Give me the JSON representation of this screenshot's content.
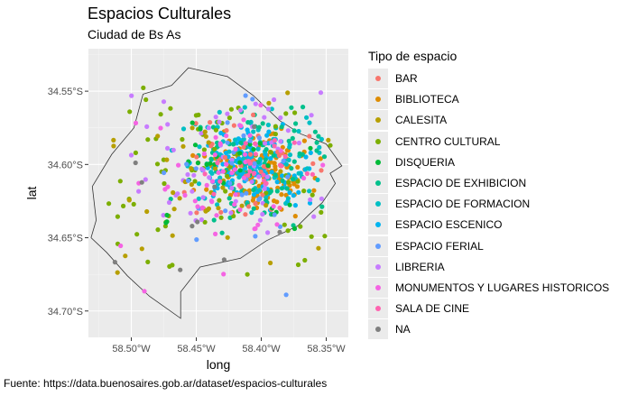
{
  "chart_data": {
    "type": "scatter",
    "title": "Espacios Culturales",
    "subtitle": "Ciudad de Bs As",
    "caption": "Fuente: https://data.buenosaires.gob.ar/dataset/espacios-culturales",
    "xlabel": "long",
    "ylabel": "lat",
    "xlim": [
      -58.533,
      -58.333
    ],
    "ylim": [
      -34.718,
      -34.521
    ],
    "x_ticks": [
      -58.5,
      -58.45,
      -58.4,
      -58.35
    ],
    "x_tick_labels": [
      "58.50°W",
      "58.45°W",
      "58.40°W",
      "58.35°W"
    ],
    "y_ticks": [
      -34.55,
      -34.6,
      -34.65,
      -34.7
    ],
    "y_tick_labels": [
      "34.55°S",
      "34.60°S",
      "34.65°S",
      "34.70°S"
    ],
    "grid": true,
    "legend": {
      "title": "Tipo de espacio",
      "position": "right",
      "entries": [
        {
          "label": "BAR",
          "color": "#F8766D"
        },
        {
          "label": "BIBLIOTECA",
          "color": "#DE8C00"
        },
        {
          "label": "CALESITA",
          "color": "#B79F00"
        },
        {
          "label": "CENTRO CULTURAL",
          "color": "#7CAE00"
        },
        {
          "label": "DISQUERIA",
          "color": "#00BA38"
        },
        {
          "label": "ESPACIO DE EXHIBICION",
          "color": "#00C08B"
        },
        {
          "label": "ESPACIO DE FORMACION",
          "color": "#00BFC4"
        },
        {
          "label": "ESPACIO ESCENICO",
          "color": "#00B4F0"
        },
        {
          "label": "ESPACIO FERIAL",
          "color": "#619CFF"
        },
        {
          "label": "LIBRERIA",
          "color": "#C77CFF"
        },
        {
          "label": "MONUMENTOS Y LUGARES HISTORICOS",
          "color": "#F564E3"
        },
        {
          "label": "SALA DE CINE",
          "color": "#FF64B0"
        },
        {
          "label": "NA",
          "color": "#7F7F7F"
        }
      ]
    },
    "city_outline": [
      [
        -58.456,
        -34.534
      ],
      [
        -58.426,
        -34.54
      ],
      [
        -58.406,
        -34.553
      ],
      [
        -58.386,
        -34.57
      ],
      [
        -58.37,
        -34.579
      ],
      [
        -58.35,
        -34.586
      ],
      [
        -58.338,
        -34.601
      ],
      [
        -58.347,
        -34.606
      ],
      [
        -58.343,
        -34.613
      ],
      [
        -58.353,
        -34.626
      ],
      [
        -58.363,
        -34.634
      ],
      [
        -58.372,
        -34.642
      ],
      [
        -58.396,
        -34.652
      ],
      [
        -58.416,
        -34.664
      ],
      [
        -58.447,
        -34.67
      ],
      [
        -58.462,
        -34.687
      ],
      [
        -58.462,
        -34.705
      ],
      [
        -58.486,
        -34.69
      ],
      [
        -58.503,
        -34.676
      ],
      [
        -58.519,
        -34.66
      ],
      [
        -58.531,
        -34.65
      ],
      [
        -58.527,
        -34.638
      ],
      [
        -58.53,
        -34.615
      ],
      [
        -58.515,
        -34.593
      ],
      [
        -58.498,
        -34.575
      ],
      [
        -58.491,
        -34.552
      ],
      [
        -58.469,
        -34.546
      ]
    ],
    "point_clusters": [
      {
        "category": "BIBLIOTECA",
        "center": [
          -58.4,
          -34.605
        ],
        "spread": [
          0.02,
          0.012
        ],
        "count": 140
      },
      {
        "category": "ESPACIO ESCENICO",
        "center": [
          -58.405,
          -34.602
        ],
        "spread": [
          0.02,
          0.012
        ],
        "count": 130
      },
      {
        "category": "ESPACIO DE FORMACION",
        "center": [
          -58.41,
          -34.6
        ],
        "spread": [
          0.03,
          0.018
        ],
        "count": 90
      },
      {
        "category": "ESPACIO DE EXHIBICION",
        "center": [
          -58.4,
          -34.6
        ],
        "spread": [
          0.03,
          0.02
        ],
        "count": 80
      },
      {
        "category": "CENTRO CULTURAL",
        "center": [
          -58.43,
          -34.61
        ],
        "spread": [
          0.05,
          0.035
        ],
        "count": 90
      },
      {
        "category": "LIBRERIA",
        "center": [
          -58.42,
          -34.6
        ],
        "spread": [
          0.04,
          0.03
        ],
        "count": 70
      },
      {
        "category": "BAR",
        "center": [
          -58.41,
          -34.605
        ],
        "spread": [
          0.03,
          0.02
        ],
        "count": 40
      },
      {
        "category": "CALESITA",
        "center": [
          -58.45,
          -34.61
        ],
        "spread": [
          0.05,
          0.035
        ],
        "count": 40
      },
      {
        "category": "DISQUERIA",
        "center": [
          -58.42,
          -34.6
        ],
        "spread": [
          0.03,
          0.02
        ],
        "count": 30
      },
      {
        "category": "ESPACIO FERIAL",
        "center": [
          -58.43,
          -34.61
        ],
        "spread": [
          0.04,
          0.03
        ],
        "count": 30
      },
      {
        "category": "MONUMENTOS Y LUGARES HISTORICOS",
        "center": [
          -58.42,
          -34.61
        ],
        "spread": [
          0.04,
          0.03
        ],
        "count": 50
      },
      {
        "category": "SALA DE CINE",
        "center": [
          -58.4,
          -34.605
        ],
        "spread": [
          0.02,
          0.012
        ],
        "count": 25
      },
      {
        "category": "NA",
        "center": [
          -58.43,
          -34.61
        ],
        "spread": [
          0.04,
          0.03
        ],
        "count": 10
      }
    ]
  }
}
